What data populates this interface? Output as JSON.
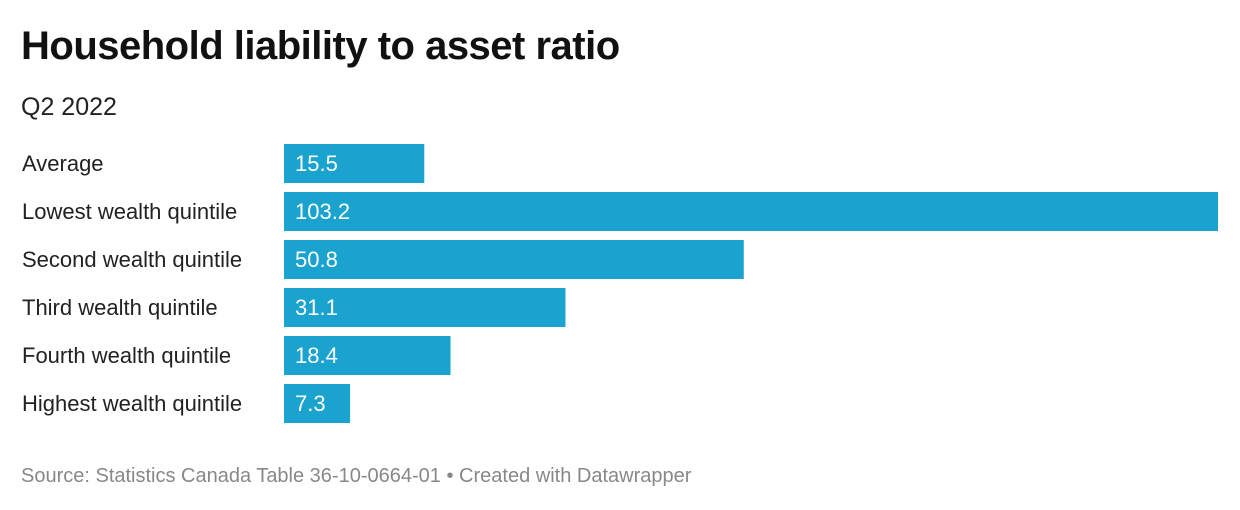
{
  "header": {
    "title": "Household liability to asset ratio",
    "subtitle": "Q2 2022"
  },
  "footer": {
    "source": "Source: Statistics Canada Table 36-10-0664-01",
    "separator": "•",
    "credit": "Created with Datawrapper"
  },
  "colors": {
    "bar": "#1aa3cf",
    "bar_label": "#ffffff",
    "category_label": "#222222"
  },
  "chart_data": {
    "type": "bar",
    "orientation": "horizontal",
    "title": "Household liability to asset ratio",
    "subtitle": "Q2 2022",
    "xlabel": "",
    "ylabel": "",
    "xlim": [
      0,
      103.2
    ],
    "grid": false,
    "legend": "none",
    "categories": [
      "Average",
      "Lowest wealth quintile",
      "Second wealth quintile",
      "Third wealth quintile",
      "Fourth wealth quintile",
      "Highest wealth quintile"
    ],
    "values": [
      15.5,
      103.2,
      50.8,
      31.1,
      18.4,
      7.3
    ],
    "value_labels": [
      "15.5",
      "103.2",
      "50.8",
      "31.1",
      "18.4",
      "7.3"
    ]
  }
}
